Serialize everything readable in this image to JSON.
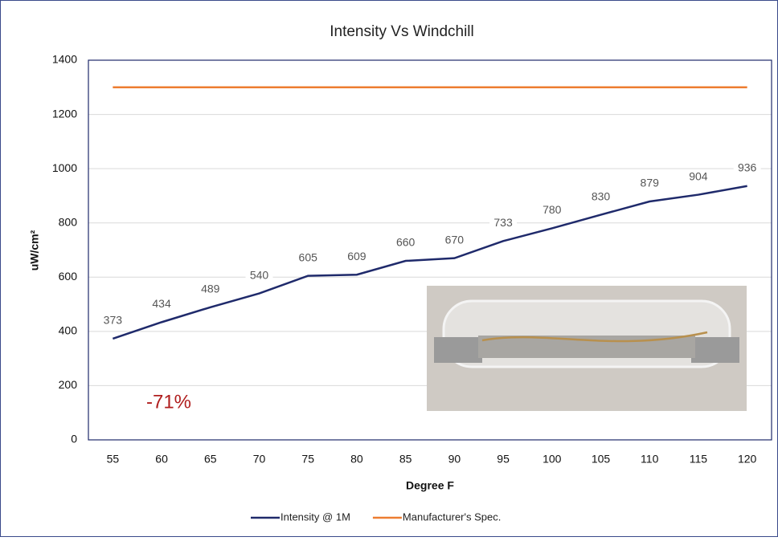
{
  "chart_data": {
    "type": "line",
    "title": "Intensity Vs Windchill",
    "x_label": "Degree F",
    "y_label": "uW/cm²",
    "categories": [
      55,
      60,
      65,
      70,
      75,
      80,
      85,
      90,
      95,
      100,
      105,
      110,
      115,
      120
    ],
    "series": [
      {
        "name": "Intensity @ 1M",
        "color": "#1f2a6b",
        "values": [
          373,
          434,
          489,
          540,
          605,
          609,
          660,
          670,
          733,
          780,
          830,
          879,
          904,
          936
        ],
        "data_labels": true
      },
      {
        "name": "Manufacturer's Spec.",
        "color": "#ed7d31",
        "values": [
          1300,
          1300,
          1300,
          1300,
          1300,
          1300,
          1300,
          1300,
          1300,
          1300,
          1300,
          1300,
          1300,
          1300
        ],
        "data_labels": false
      }
    ],
    "ylim": [
      0,
      1400
    ],
    "yticks": [
      0,
      200,
      400,
      600,
      800,
      1000,
      1200,
      1400
    ],
    "grid": true,
    "legend": "bottom",
    "annotation": "-71%"
  }
}
